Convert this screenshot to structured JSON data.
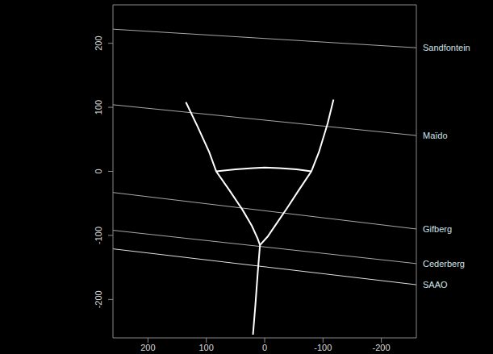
{
  "chart_data": {
    "type": "line",
    "xlim": [
      260,
      -260
    ],
    "ylim": [
      -260,
      260
    ],
    "xticks": [
      200,
      100,
      0,
      -100,
      -200
    ],
    "yticks": [
      -200,
      -100,
      0,
      100,
      200
    ],
    "series": [
      {
        "name": "Sandfontein",
        "color": "#a8a8a8",
        "x": [
          260,
          -260
        ],
        "values": [
          222,
          193
        ]
      },
      {
        "name": "Maïdo",
        "color": "#a8a8a8",
        "x": [
          260,
          -260
        ],
        "values": [
          104,
          56
        ]
      },
      {
        "name": "Gifberg",
        "color": "#a8a8a8",
        "x": [
          260,
          -260
        ],
        "values": [
          -33,
          -90
        ]
      },
      {
        "name": "Cederberg",
        "color": "#a8a8a8",
        "x": [
          260,
          -260
        ],
        "values": [
          -92,
          -144
        ]
      },
      {
        "name": "SAAO",
        "color": "#e0e0e0",
        "x": [
          260,
          -260
        ],
        "values": [
          -121,
          -177
        ]
      },
      {
        "color": "#ffffff",
        "x": [
          135,
          115,
          95,
          83,
          60,
          38,
          22,
          12,
          8
        ],
        "values": [
          108,
          70,
          30,
          0,
          -30,
          -60,
          -85,
          -105,
          -115
        ]
      },
      {
        "color": "#ffffff",
        "x": [
          -118,
          -108,
          -93,
          -80,
          -58,
          -38,
          -20,
          -5,
          8
        ],
        "values": [
          112,
          75,
          30,
          0,
          -30,
          -58,
          -82,
          -102,
          -115
        ]
      },
      {
        "color": "#ffffff",
        "x": [
          83,
          50,
          20,
          0,
          -25,
          -55,
          -80
        ],
        "values": [
          0,
          3,
          5,
          6,
          5,
          3,
          0
        ]
      },
      {
        "color": "#ffffff",
        "x": [
          8,
          12,
          16,
          20
        ],
        "values": [
          -115,
          -160,
          -210,
          -255
        ]
      }
    ]
  }
}
